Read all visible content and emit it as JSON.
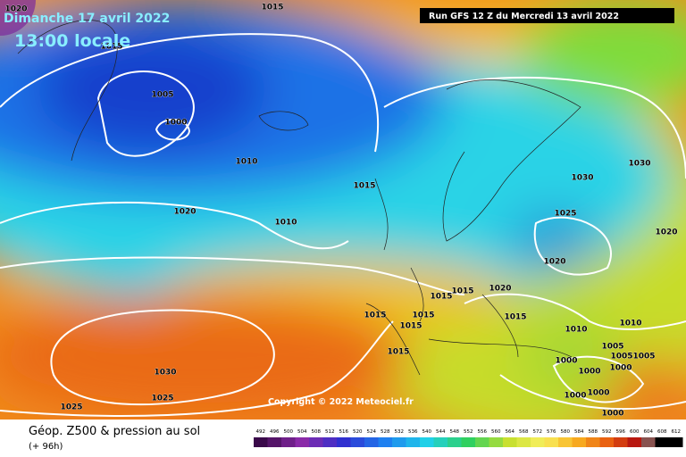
{
  "header": {
    "date": "Dimanche 17 avril 2022",
    "time": "13:00 locale",
    "run": "Run GFS 12 Z du Mercredi 13 avril 2022"
  },
  "isobar_labels": [
    1020,
    1015,
    1015,
    1005,
    1000,
    1010,
    1015,
    1020,
    1010,
    1030,
    1030,
    1025,
    1020,
    1020,
    1020,
    1015,
    1015,
    1015,
    1015,
    1015,
    1015,
    1010,
    1010,
    1015,
    1005,
    1005,
    1005,
    1000,
    1000,
    1000,
    1000,
    1000,
    1000,
    1030,
    1025,
    1025
  ],
  "copyright": "Copyright © 2022 Meteociel.fr",
  "legend": {
    "title": "Géop. Z500 & pression au sol",
    "lead": "(+ 96h)",
    "scale": [
      492,
      496,
      500,
      504,
      508,
      512,
      516,
      520,
      524,
      528,
      532,
      536,
      540,
      544,
      548,
      552,
      556,
      560,
      564,
      568,
      572,
      576,
      580,
      584,
      588,
      592,
      596,
      600,
      604,
      608,
      612
    ]
  }
}
